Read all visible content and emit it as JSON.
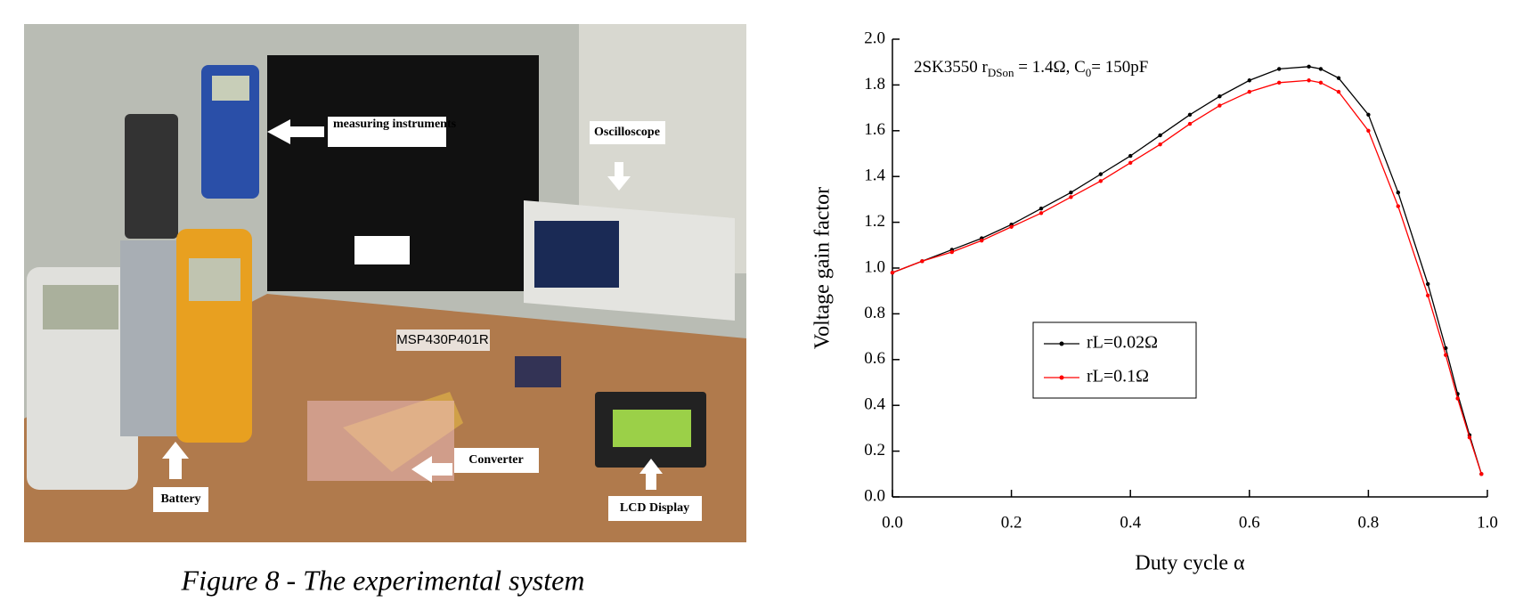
{
  "photo": {
    "labels": {
      "instruments": "measuring instruments",
      "oscilloscope": "Oscilloscope",
      "mcu": "MSP430P401R",
      "battery": "Battery",
      "converter": "Converter",
      "lcd": "LCD Display"
    }
  },
  "caption": "Figure 8 - The experimental system",
  "chart_data": {
    "type": "line",
    "annotation": [
      "2SK3550 r",
      "DSon",
      " = 1.4Ω, C",
      "0",
      "= 150pF"
    ],
    "xlabel": "Duty cycle α",
    "ylabel": "Voltage gain factor",
    "x": [
      0,
      0.05,
      0.1,
      0.15,
      0.2,
      0.25,
      0.3,
      0.35,
      0.4,
      0.45,
      0.5,
      0.55,
      0.6,
      0.65,
      0.7,
      0.72,
      0.75,
      0.8,
      0.85,
      0.9,
      0.93,
      0.95,
      0.97,
      0.99
    ],
    "series": [
      {
        "name": "rL=0.02Ω",
        "color": "#000000",
        "values": [
          0.98,
          1.03,
          1.08,
          1.13,
          1.19,
          1.26,
          1.33,
          1.41,
          1.49,
          1.58,
          1.67,
          1.75,
          1.82,
          1.87,
          1.88,
          1.87,
          1.83,
          1.67,
          1.33,
          0.93,
          0.65,
          0.45,
          0.27,
          0.1
        ]
      },
      {
        "name": "rL=0.1Ω",
        "color": "#ff0000",
        "values": [
          0.98,
          1.03,
          1.07,
          1.12,
          1.18,
          1.24,
          1.31,
          1.38,
          1.46,
          1.54,
          1.63,
          1.71,
          1.77,
          1.81,
          1.82,
          1.81,
          1.77,
          1.6,
          1.27,
          0.88,
          0.62,
          0.43,
          0.26,
          0.1
        ]
      }
    ],
    "xlim": [
      0,
      1
    ],
    "xticks": [
      {
        "value": 0,
        "label": "0.0"
      },
      0.2,
      0.4,
      0.6,
      0.8,
      {
        "value": 1,
        "label": "1.0"
      }
    ],
    "ylim": [
      0,
      2
    ],
    "yticks": [
      {
        "value": 0,
        "label": "0.0"
      },
      0.2,
      0.4,
      0.6,
      0.8,
      {
        "value": 1,
        "label": "1.0"
      },
      1.2,
      1.4,
      1.6,
      1.8,
      {
        "value": 2,
        "label": "2.0"
      }
    ],
    "legend": "lower-left"
  }
}
